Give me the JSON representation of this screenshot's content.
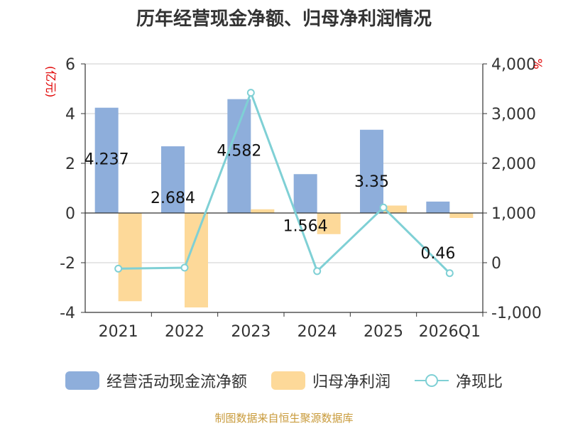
{
  "chart_data": {
    "type": "bar",
    "title": "历年经营现金净额、归母净利润情况",
    "categories": [
      "2021",
      "2022",
      "2023",
      "2024",
      "2025",
      "2026Q1"
    ],
    "y_left": {
      "label": "(亿元)",
      "ylim": [
        -4,
        6
      ],
      "ticks": [
        "6",
        "4",
        "2",
        "0",
        "-2",
        "-4"
      ]
    },
    "y_right": {
      "label": "%",
      "ylim": [
        -1000,
        4000
      ],
      "ticks": [
        "4,000",
        "3,000",
        "2,000",
        "1,000",
        "0",
        "-1,000"
      ]
    },
    "series": [
      {
        "name": "经营活动现金流净额",
        "kind": "bar",
        "axis": "left",
        "color": "#8eaedb",
        "values": [
          4.237,
          2.684,
          4.582,
          1.564,
          3.35,
          0.46
        ],
        "labels": [
          "4.237",
          "2.684",
          "4.582",
          "1.564",
          "3.35",
          "0.46"
        ]
      },
      {
        "name": "归母净利润",
        "kind": "bar",
        "axis": "left",
        "color": "#fdd999",
        "values": [
          -3.55,
          -3.8,
          0.15,
          -0.85,
          0.3,
          -0.2
        ]
      },
      {
        "name": "净现比",
        "kind": "line",
        "axis": "right",
        "color": "#7fd0d5",
        "values": [
          -120,
          -100,
          3420,
          -170,
          1110,
          -210
        ]
      }
    ],
    "grid": true,
    "legend": "bottom"
  },
  "source_note": "制图数据来自恒生聚源数据库",
  "colors": {
    "title": "#333333",
    "axis_label": "#e00000",
    "source": "#c89a3a",
    "grid": "#cccccc",
    "axis": "#333333"
  }
}
